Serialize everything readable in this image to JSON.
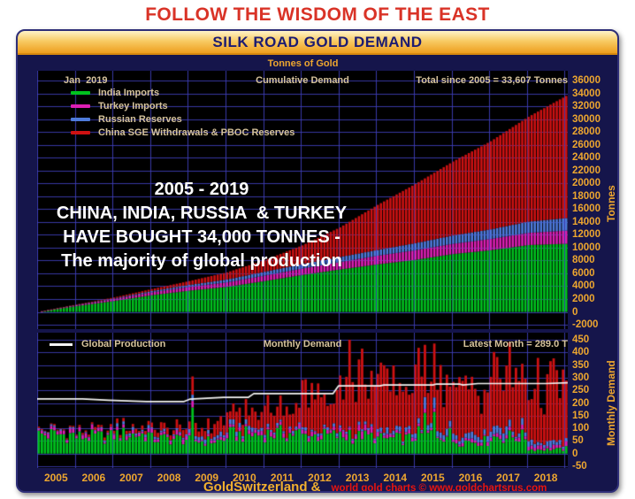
{
  "page": {
    "headline": "FOLLOW THE WISDOM OF THE EAST",
    "title_bar": "SILK ROAD GOLD DEMAND",
    "chart_title": "Tonnes of Gold",
    "footer_left": "GoldSwitzerland &",
    "footer_right": "world gold charts © www.goldchartsrus.com"
  },
  "colors": {
    "frame_navy": "#15154B",
    "plot_background": "#000000",
    "grid_blue": "#2E2E9B",
    "gold_text": "#EDA62F",
    "tan_text": "#D6C39C",
    "headline_red": "#D93327",
    "india_green": "#00C21E",
    "turkey_magenta": "#DD1FB4",
    "russia_blue": "#4E7BDC",
    "china_red": "#CE1112",
    "production_white": "#F4F4F4"
  },
  "top_chart": {
    "date_label": "Jan  2019",
    "center_label": "Cumulative Demand",
    "total_label": "Total since 2005 = 33,607 Tonnes",
    "ylabel": "Tonnes",
    "annotation_lines": [
      "2005 - 2019",
      "CHINA, INDIA, RUSSIA  & TURKEY",
      "HAVE BOUGHT 34,000 TONNES -",
      "The majority of global production"
    ]
  },
  "bottom_chart": {
    "line_label": "Global Production",
    "center_label": "Monthly Demand",
    "latest_label": "Latest Month = 289.0 T",
    "ylabel": "Monthly Demand"
  },
  "chart_data": [
    {
      "id": "cumulative-demand",
      "type": "bar",
      "stacked": true,
      "title": "Cumulative Demand",
      "ylabel": "Tonnes",
      "ylim": [
        -2000,
        36000
      ],
      "ytick_step": 2000,
      "yticks": [
        36000,
        34000,
        32000,
        30000,
        28000,
        26000,
        24000,
        22000,
        20000,
        18000,
        16000,
        14000,
        12000,
        10000,
        8000,
        6000,
        4000,
        2000,
        0,
        -2000
      ],
      "xticks": [
        "2005",
        "2006",
        "2007",
        "2008",
        "2009",
        "2010",
        "2011",
        "2012",
        "2013",
        "2014",
        "2015",
        "2016",
        "2017",
        "2018"
      ],
      "x_range": "monthly bars Jan 2005 - Jan 2019 (169 bars)",
      "total_since_2005_tonnes": 33607,
      "years": [
        2005,
        2006,
        2007,
        2008,
        2009,
        2010,
        2011,
        2012,
        2013,
        2014,
        2015,
        2016,
        2017,
        2018,
        2019
      ],
      "series": [
        {
          "name": "India Imports",
          "color": "#00C21E",
          "cumulative_tonnes_by_jan": [
            0,
            900,
            1700,
            2600,
            3300,
            3900,
            4800,
            5750,
            6600,
            7400,
            8100,
            9000,
            9600,
            10400,
            10600
          ]
        },
        {
          "name": "Turkey Imports",
          "color": "#DD1FB4",
          "cumulative_tonnes_by_jan": [
            0,
            150,
            300,
            450,
            600,
            700,
            850,
            1000,
            1150,
            1350,
            1500,
            1600,
            1750,
            1900,
            2050
          ]
        },
        {
          "name": "Russian Reserves",
          "color": "#4E7BDC",
          "cumulative_tonnes_by_jan": [
            0,
            50,
            100,
            200,
            300,
            450,
            600,
            700,
            800,
            900,
            1100,
            1300,
            1500,
            1750,
            1950
          ]
        },
        {
          "name": "China SGE Withdrawals & PBOC Reserves",
          "color": "#CE1112",
          "cumulative_tonnes_by_jan": [
            0,
            50,
            150,
            300,
            600,
            1100,
            1800,
            2900,
            4600,
            7000,
            9200,
            11500,
            13700,
            16300,
            19000
          ]
        }
      ]
    },
    {
      "id": "monthly-demand",
      "type": "bar",
      "stacked": true,
      "title": "Monthly Demand",
      "ylabel": "Monthly Demand",
      "ylim": [
        -50,
        450
      ],
      "ytick_step": 50,
      "yticks": [
        450,
        400,
        350,
        300,
        250,
        200,
        150,
        100,
        50,
        0,
        -50
      ],
      "note": "monthly bars are the month-over-month increments of the cumulative series above",
      "latest_month_total_tonnes": 289.0,
      "peak_months": [
        {
          "month": "2009-02",
          "total": 305
        },
        {
          "month": "2013-04",
          "total": 450
        },
        {
          "month": "2013-08",
          "total": 415
        },
        {
          "month": "2015-04",
          "total": 430
        },
        {
          "month": "2015-07",
          "total": 435
        }
      ],
      "line": {
        "name": "Global Production",
        "color": "#F4F4F4",
        "points": [
          [
            2005.0,
            216
          ],
          [
            2006.2,
            216
          ],
          [
            2006.9,
            211
          ],
          [
            2007.9,
            206
          ],
          [
            2008.9,
            206
          ],
          [
            2009.05,
            215
          ],
          [
            2009.95,
            222
          ],
          [
            2010.6,
            222
          ],
          [
            2010.75,
            237
          ],
          [
            2012.85,
            237
          ],
          [
            2013.0,
            268
          ],
          [
            2014.1,
            268
          ],
          [
            2014.2,
            271
          ],
          [
            2015.5,
            271
          ],
          [
            2015.6,
            275
          ],
          [
            2016.2,
            275
          ],
          [
            2016.3,
            271
          ],
          [
            2016.7,
            277
          ],
          [
            2018.5,
            277
          ],
          [
            2019.08,
            280
          ]
        ]
      }
    }
  ]
}
